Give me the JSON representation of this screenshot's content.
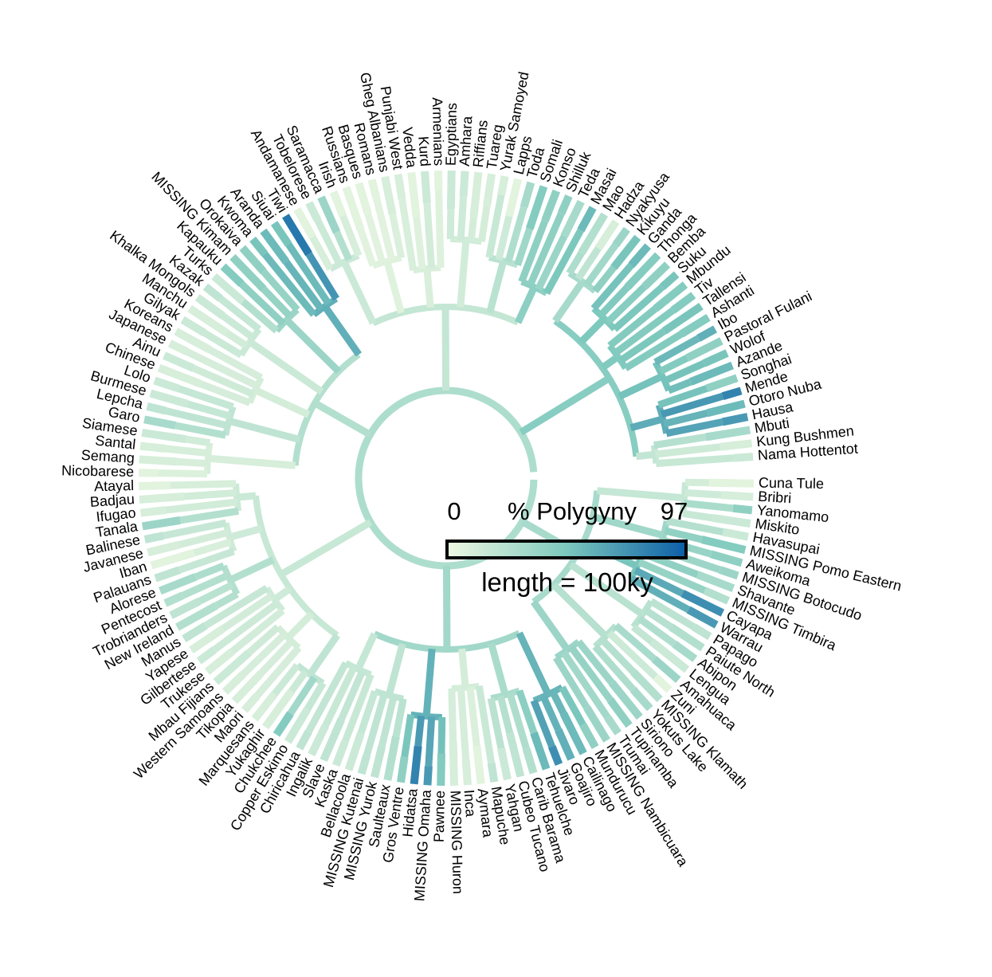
{
  "chart_data": {
    "type": "circular-tree",
    "tips": [
      "Cuna Tule",
      "Bribri",
      "Yanomamo",
      "Miskito",
      "Havasupai",
      "MISSING Pomo Eastern",
      "Aweikoma",
      "MISSING Botocudo",
      "Shavante",
      "MISSING Timbira",
      "Cayapa",
      "Warrau",
      "Papago",
      "Paiute North",
      "Abipon",
      "Lengua",
      "Amahuaca",
      "Zuni",
      "MISSING Klamath",
      "Yokuts Lake",
      "Siriono",
      "Tupinamba",
      "Trumai",
      "MISSING Nambicuara",
      "Mundurucu",
      "Cailinago",
      "Goajiro",
      "Jivaro",
      "Tehuelche",
      "Carib Barama",
      "Cubeo Tucano",
      "Yahgan",
      "Mapuche",
      "Aymara",
      "Inca",
      "MISSING Huron",
      "Pawnee",
      "MISSING Omaha",
      "Hidatsa",
      "Gros Ventre",
      "Saulteaux",
      "MISSING Yurok",
      "MISSING Kutenai",
      "Bellacoola",
      "Kaska",
      "Slave",
      "Ingalik",
      "Chiricahua",
      "Copper Eskimo",
      "Chukchee",
      "Yukaghir",
      "Marquesans",
      "Maori",
      "Tikopia",
      "Western Samoans",
      "Mbau Fijians",
      "Trukese",
      "Gilbertese",
      "Yapese",
      "Manus",
      "New Ireland",
      "Trobrianders",
      "Pentecost",
      "Alorese",
      "Palauans",
      "Iban",
      "Javanese",
      "Balinese",
      "Tanala",
      "Ifugao",
      "Badjau",
      "Atayal",
      "Nicobarese",
      "Semang",
      "Santal",
      "Siamese",
      "Garo",
      "Lepcha",
      "Burmese",
      "Lolo",
      "Chinese",
      "Ainu",
      "Japanese",
      "Koreans",
      "Gilyak",
      "Manchu",
      "Khalka Mongols",
      "Kazak",
      "Turks",
      "Kapauku",
      "MISSING Kimam",
      "Orokaiva",
      "Kwoma",
      "Aranda",
      "Siuai",
      "Tiwi",
      "Andamanese",
      "Tobelorese",
      "Saramacca",
      "Irish",
      "Russians",
      "Basques",
      "Romans",
      "Gheg Albanians",
      "Punjabi West",
      "Vedda",
      "Kurd",
      "Armenians",
      "Egyptians",
      "Amhara",
      "Riffians",
      "Tuareg",
      "Yurak Samoyed",
      "Lapps",
      "Toda",
      "Somali",
      "Konso",
      "Shilluk",
      "Teda",
      "Masai",
      "Mao",
      "Hadza",
      "Nyakyusa",
      "Kikuyu",
      "Ganda",
      "Thonga",
      "Bemba",
      "Suku",
      "Mbundu",
      "Tiv",
      "Tallensi",
      "Ashanti",
      "Ibo",
      "Pastoral Fulani",
      "Wolof",
      "Azande",
      "Songhai",
      "Mende",
      "Otoro Nuba",
      "Hausa",
      "Mbuti",
      "Kung Bushmen",
      "Nama Hottentot"
    ],
    "values": [
      5,
      10,
      40,
      15,
      15,
      45,
      40,
      35,
      30,
      25,
      75,
      70,
      20,
      25,
      30,
      15,
      35,
      5,
      25,
      30,
      35,
      40,
      30,
      35,
      40,
      55,
      60,
      75,
      55,
      25,
      20,
      15,
      20,
      5,
      10,
      10,
      45,
      70,
      80,
      40,
      25,
      20,
      20,
      15,
      15,
      20,
      15,
      20,
      15,
      45,
      10,
      10,
      10,
      10,
      10,
      15,
      10,
      15,
      10,
      20,
      25,
      20,
      25,
      30,
      20,
      5,
      10,
      20,
      35,
      10,
      10,
      5,
      5,
      10,
      10,
      15,
      30,
      20,
      15,
      15,
      10,
      15,
      10,
      10,
      15,
      10,
      15,
      20,
      15,
      45,
      40,
      40,
      50,
      55,
      50,
      85,
      5,
      15,
      35,
      5,
      5,
      5,
      5,
      10,
      10,
      5,
      15,
      5,
      15,
      15,
      10,
      10,
      10,
      5,
      30,
      45,
      40,
      40,
      30,
      55,
      25,
      10,
      35,
      50,
      55,
      45,
      40,
      50,
      45,
      45,
      50,
      45,
      60,
      40,
      50,
      55,
      40,
      80,
      55,
      70,
      30,
      10,
      15
    ],
    "colors": [
      "#eef8e2",
      "#7cc8bd",
      "#0b5ea8"
    ],
    "legend": {
      "title": "% Polygyny",
      "min": 0,
      "max": 97,
      "scale_label": "length = 100ky"
    }
  }
}
